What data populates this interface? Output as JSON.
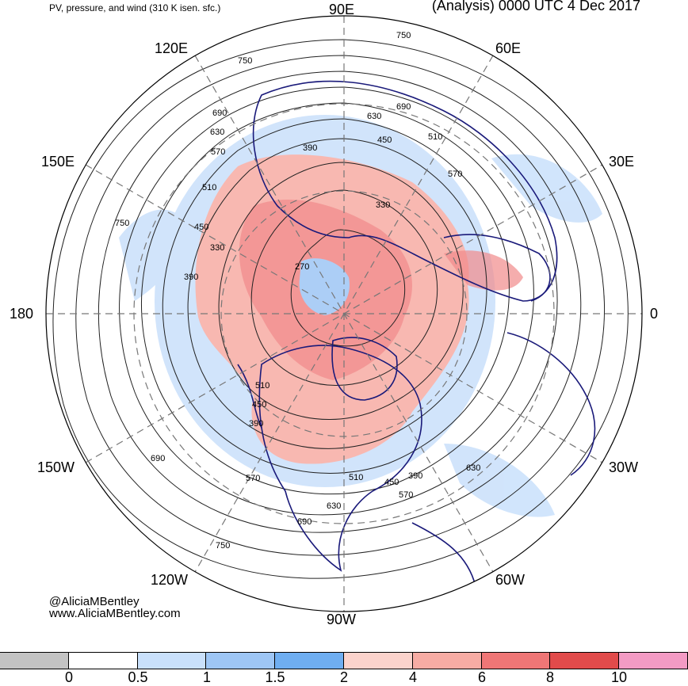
{
  "title": {
    "left": "PV, pressure, and wind (310 K isen. sfc.)",
    "right": "(Analysis) 0000 UTC 4 Dec 2017"
  },
  "longitude_labels": {
    "e90": "90E",
    "e120": "120E",
    "e60": "60E",
    "e150": "150E",
    "e30": "30E",
    "w180": "180",
    "zero": "0",
    "w150": "150W",
    "w30": "30W",
    "w120": "120W",
    "w60": "60W",
    "w90": "90W"
  },
  "contour_labels": [
    "750",
    "690",
    "630",
    "570",
    "510",
    "450",
    "390",
    "330",
    "270",
    "750",
    "690",
    "630",
    "570",
    "510",
    "450",
    "390",
    "330",
    "750",
    "690",
    "630",
    "570",
    "510",
    "450",
    "390",
    "750",
    "690",
    "630",
    "570",
    "510",
    "450",
    "390"
  ],
  "credit": {
    "handle": "@AliciaMBentley",
    "site": "www.AliciaMBentley.com"
  },
  "colorbar": {
    "colors": [
      "#c3c3c3",
      "#ffffff",
      "#c9e0fb",
      "#9ec6f5",
      "#6faef1",
      "#fbd3cc",
      "#f7aca4",
      "#ef7676",
      "#e14b4b",
      "#f39bc4"
    ],
    "labels": [
      "0",
      "0.5",
      "1",
      "1.5",
      "2",
      "4",
      "6",
      "8",
      "10"
    ]
  },
  "map_colors": {
    "coast": "#1a1a7a",
    "contour": "#222222",
    "graticule": "#777777",
    "pv_low": "#9ec6f5",
    "pv_mid": "#f7aca4",
    "pv_high": "#ef7676"
  }
}
